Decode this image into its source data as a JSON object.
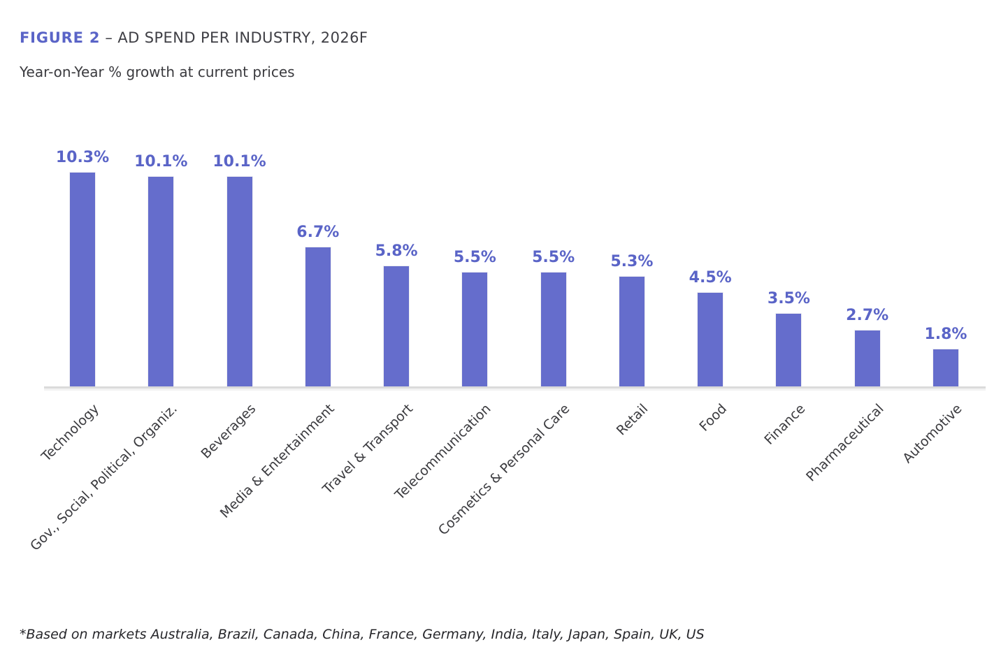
{
  "figure": {
    "label": "FIGURE 2",
    "title": "– AD SPEND PER INDUSTRY, 2026F",
    "subtitle": "Year-on-Year % growth at current prices",
    "footnote": "*Based on markets Australia, Brazil, Canada, China, France, Germany, India, Italy, Japan, Spain, UK, US"
  },
  "colors": {
    "accent": "#5A64C7",
    "bar_fill": "#656DCC",
    "axis_line": "#DBDBDB",
    "text_dark": "#3A3A3E"
  },
  "chart_data": {
    "type": "bar",
    "title": "AD SPEND PER INDUSTRY, 2026F",
    "subtitle": "Year-on-Year % growth at current prices",
    "categories": [
      "Technology",
      "Gov., Social, Political, Organiz.",
      "Beverages",
      "Media & Entertainment",
      "Travel & Transport",
      "Telecommunication",
      "Cosmetics & Personal Care",
      "Retail",
      "Food",
      "Finance",
      "Pharmaceutical",
      "Automotive"
    ],
    "values": [
      10.3,
      10.1,
      10.1,
      6.7,
      5.8,
      5.5,
      5.5,
      5.3,
      4.5,
      3.5,
      2.7,
      1.8
    ],
    "value_labels": [
      "10.3%",
      "10.1%",
      "10.1%",
      "6.7%",
      "5.8%",
      "5.5%",
      "5.5%",
      "5.3%",
      "4.5%",
      "3.5%",
      "2.7%",
      "1.8%"
    ],
    "unit": "%",
    "ylim": [
      0,
      11
    ],
    "grid": false,
    "legend": false,
    "x_label_rotation_deg": 45
  }
}
